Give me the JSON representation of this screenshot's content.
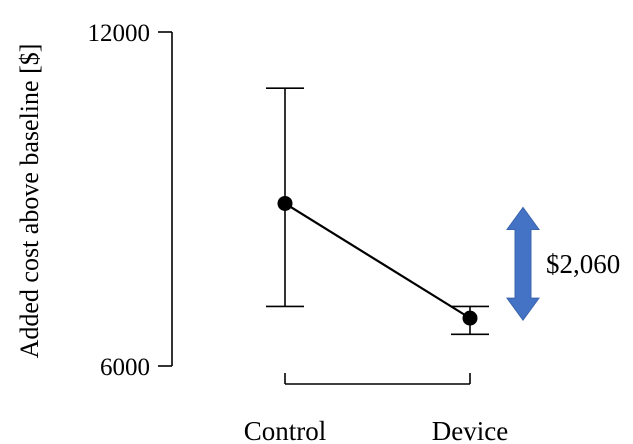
{
  "chart_data": {
    "type": "scatter",
    "title": "",
    "xlabel": "",
    "ylabel": "Added cost above baseline [$]",
    "ylim": [
      6000,
      12000
    ],
    "yticks": [
      6000,
      12000
    ],
    "grid": false,
    "categories": [
      "Control",
      "Device"
    ],
    "points": [
      {
        "category": "Control",
        "mean": 8920,
        "lower": 7070,
        "upper": 10990
      },
      {
        "category": "Device",
        "mean": 6860,
        "lower": 6570,
        "upper": 7070
      }
    ],
    "connect_points": true,
    "annotation": {
      "text": "$2,060",
      "from": 6860,
      "to": 8920,
      "color": "#4472C4"
    }
  }
}
